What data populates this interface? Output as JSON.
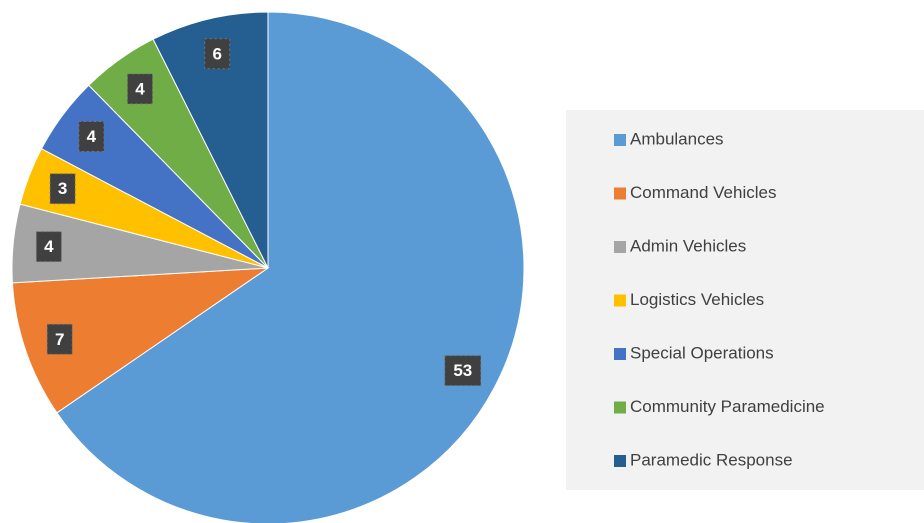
{
  "chart_data": {
    "type": "pie",
    "categories": [
      "Ambulances",
      "Command Vehicles",
      "Admin Vehicles",
      "Logistics Vehicles",
      "Special Operations",
      "Community Paramedicine",
      "Paramedic Response"
    ],
    "values": [
      53,
      7,
      4,
      3,
      4,
      4,
      6
    ],
    "colors": [
      "#5b9bd5",
      "#ed7d31",
      "#a5a5a5",
      "#ffc000",
      "#4472c4",
      "#70ad47",
      "#255e91"
    ],
    "legend": "right"
  }
}
